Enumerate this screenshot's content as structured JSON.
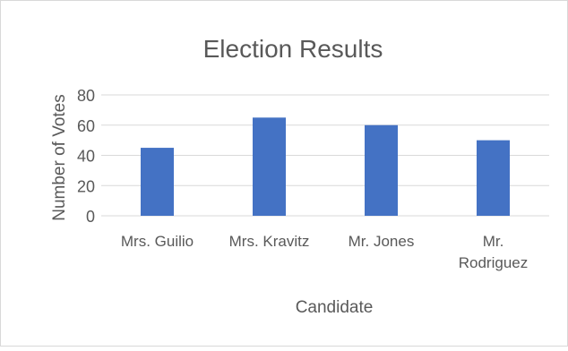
{
  "chart_data": {
    "type": "bar",
    "title": "Election Results",
    "xlabel": "Candidate",
    "ylabel": "Number of Votes",
    "categories": [
      "Mrs. Guilio",
      "Mrs. Kravitz",
      "Mr. Jones",
      "Mr. Rodriguez"
    ],
    "category_lines": [
      [
        "Mrs. Guilio"
      ],
      [
        "Mrs. Kravitz"
      ],
      [
        "Mr. Jones"
      ],
      [
        "Mr.",
        "Rodriguez"
      ]
    ],
    "values": [
      45,
      65,
      60,
      50
    ],
    "ylim": [
      0,
      80
    ],
    "yticks": [
      0,
      20,
      40,
      60,
      80
    ],
    "ytick_labels": [
      "0",
      "20",
      "40",
      "60",
      "80"
    ],
    "grid": true,
    "legend": "none",
    "colors": {
      "bar": "#4472C4",
      "grid": "#D9D9D9",
      "text": "#595959",
      "frame": "#D9D9D9"
    }
  }
}
